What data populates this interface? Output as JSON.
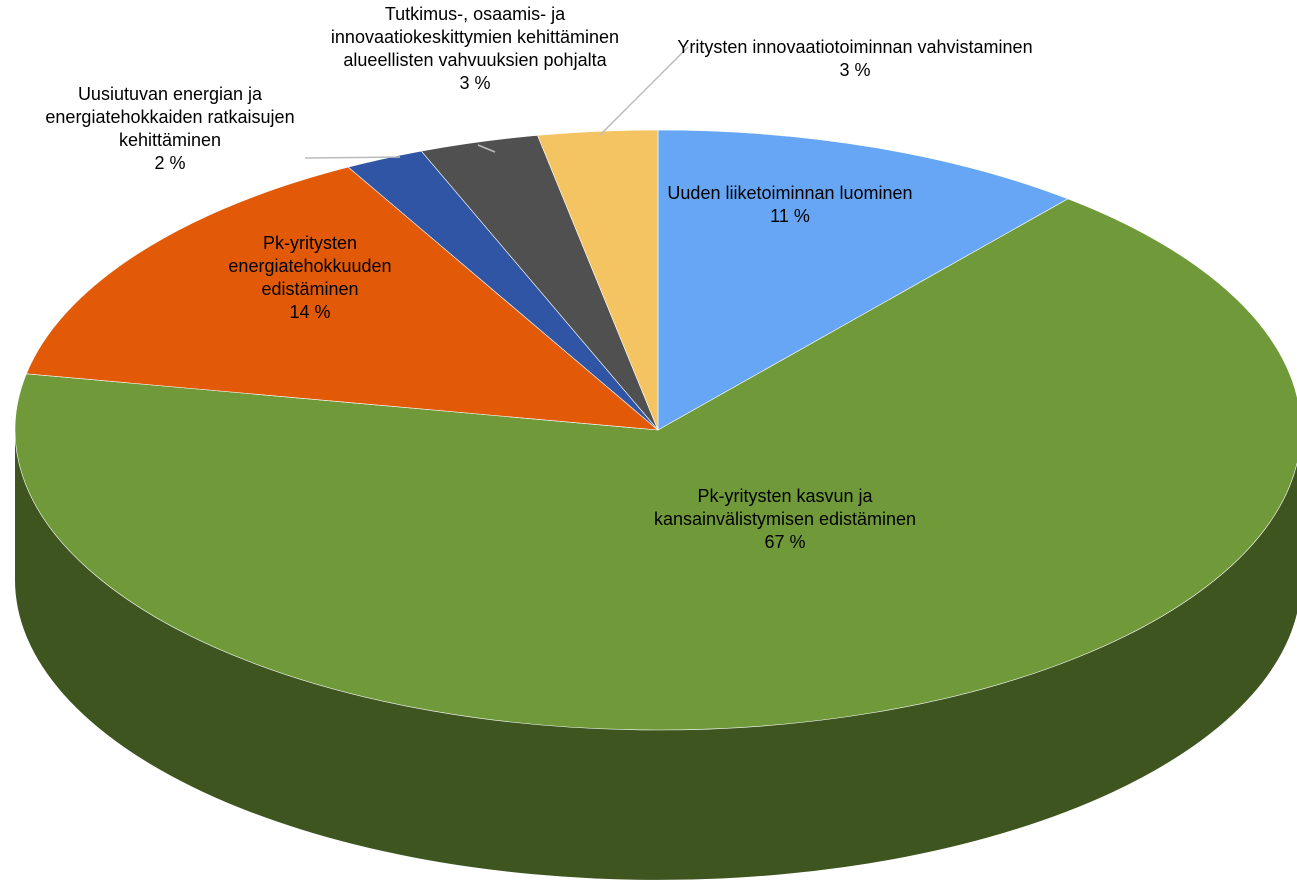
{
  "chart_data": {
    "type": "pie3d",
    "categories": [
      "Uuden liiketoiminnan luominen",
      "Pk-yritysten kasvun ja kansainvälistymisen edistäminen",
      "Pk-yritysten energiatehokkuuden edistäminen",
      "Uusiutuvan energian ja energiatehokkaiden ratkaisujen kehittäminen",
      "Tutkimus-, osaamis- ja innovaatiokeskittymien kehittäminen alueellisten vahvuuksien pohjalta",
      "Yritysten innovaatiotoiminnan vahvistaminen"
    ],
    "values": [
      11,
      67,
      14,
      2,
      3,
      3
    ],
    "value_labels": [
      "11 %",
      "67 %",
      "14 %",
      "2 %",
      "3 %",
      "3 %"
    ],
    "colors": [
      "#66a6f5",
      "#709a3a",
      "#e25a08",
      "#2f55a4",
      "#505050",
      "#f5c462"
    ]
  }
}
